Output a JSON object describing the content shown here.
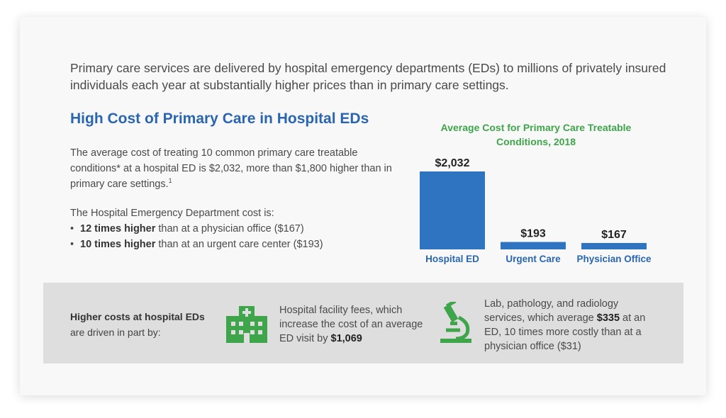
{
  "intro": "Primary care services are delivered by hospital emergency departments (EDs) to millions of privately insured individuals each year at substantially higher prices than in primary care settings.",
  "heading": "High Cost of Primary Care in Hospital EDs",
  "paragraph": {
    "text": "The average cost of treating 10 common primary care treatable conditions* at a hospital ED is $2,032, more than $1,800 higher than in primary care settings.",
    "footnote": "1"
  },
  "cost_intro": "The Hospital Emergency Department cost is:",
  "bullets": [
    {
      "marker": "•",
      "bold": "12 times higher",
      "rest": " than at a physician office ($167)"
    },
    {
      "marker": "•",
      "bold": "10 times higher",
      "rest": " than at an urgent care center ($193)"
    }
  ],
  "chart_data": {
    "type": "bar",
    "title": "Average Cost for Primary Care Treatable Conditions, 2018",
    "categories": [
      "Hospital ED",
      "Urgent Care",
      "Physician Office"
    ],
    "values": [
      2032,
      193,
      167
    ],
    "value_labels": [
      "$2,032",
      "$193",
      "$167"
    ],
    "xlabel": "",
    "ylabel": "",
    "grid": false,
    "bar_color": "#2e74c0",
    "title_color": "#3ea54a",
    "label_color": "#2a66b0"
  },
  "band": {
    "label_bold": "Higher costs at hospital EDs",
    "label_rest": "are driven in part by:",
    "icon_color": "#3ea54a",
    "items": [
      {
        "icon": "hospital-icon",
        "text": "Hospital facility fees, which increase the cost of an average ED visit by ",
        "bold": "$1,069",
        "after": ""
      },
      {
        "icon": "microscope-icon",
        "text": "Lab, pathology, and radiology services, which average ",
        "bold": "$335",
        "after": " at an ED, 10 times more costly than at a physician office ($31)"
      }
    ]
  }
}
